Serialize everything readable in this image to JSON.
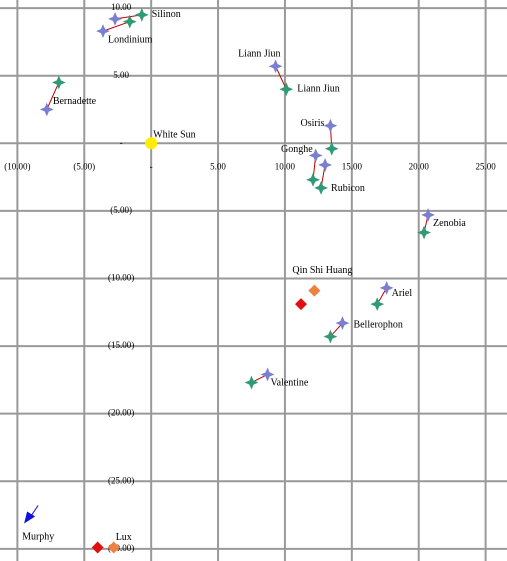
{
  "chart_data": {
    "type": "scatter",
    "xlim": [
      -11.3,
      26.6
    ],
    "ylim": [
      -30.9,
      10.6
    ],
    "grid": true,
    "xticks": [
      {
        "value": -10,
        "label": "(10.00)"
      },
      {
        "value": -5,
        "label": "(5.00)"
      },
      {
        "value": 0,
        "label": "-"
      },
      {
        "value": 5,
        "label": "5.00"
      },
      {
        "value": 10,
        "label": "10.00"
      },
      {
        "value": 15,
        "label": "15.00"
      },
      {
        "value": 20,
        "label": "20.00"
      },
      {
        "value": 25,
        "label": "25.00"
      }
    ],
    "yticks": [
      {
        "value": 10,
        "label": "10.00"
      },
      {
        "value": 5,
        "label": "5.00"
      },
      {
        "value": 0,
        "label": "-"
      },
      {
        "value": -5,
        "label": "(5.00)"
      },
      {
        "value": -10,
        "label": "(10.00)"
      },
      {
        "value": -15,
        "label": "(15.00)"
      },
      {
        "value": -20,
        "label": "(20.00)"
      },
      {
        "value": -25,
        "label": "(25.00)"
      },
      {
        "value": -30,
        "label": "(30.00)"
      }
    ],
    "series": [
      {
        "x": [
          -2.7,
          -0.7
        ],
        "values": [
          9.2,
          9.5
        ],
        "labels": [
          null,
          "Silinon"
        ],
        "marker": "star",
        "colors": [
          "#7b7fd0",
          "#2e9a76"
        ],
        "line_color": "#c00000"
      },
      {
        "x": [
          -3.6,
          -1.6
        ],
        "values": [
          8.3,
          9.0
        ],
        "labels": [
          "Londinium",
          null
        ],
        "marker": "star",
        "colors": [
          "#7b7fd0",
          "#2e9a76"
        ],
        "line_color": "#c00000"
      },
      {
        "x": [
          9.3,
          10.1
        ],
        "values": [
          5.7,
          4.0
        ],
        "labels": [
          "Liann Jiun",
          "Liann Jiun"
        ],
        "marker": "star",
        "colors": [
          "#7b7fd0",
          "#2e9a76"
        ],
        "line_color": "#c00000"
      },
      {
        "x": [
          -6.9,
          -7.8
        ],
        "values": [
          4.5,
          2.5
        ],
        "labels": [
          null,
          "Bernadette"
        ],
        "marker": "star",
        "colors": [
          "#2e9a76",
          "#7b7fd0"
        ],
        "line_color": "#c00000"
      },
      {
        "x": [
          0
        ],
        "values": [
          0
        ],
        "labels": [
          "White Sun"
        ],
        "marker": "circle",
        "colors": [
          "#ffee00"
        ]
      },
      {
        "x": [
          13.4,
          13.5
        ],
        "values": [
          1.3,
          -0.4
        ],
        "labels": [
          "Osiris",
          null
        ],
        "marker": "star",
        "colors": [
          "#7b7fd0",
          "#2e9a76"
        ],
        "line_color": "#c00000"
      },
      {
        "x": [
          12.3,
          12.1
        ],
        "values": [
          -0.9,
          -2.7
        ],
        "labels": [
          "Gonghe",
          null
        ],
        "marker": "star",
        "colors": [
          "#7b7fd0",
          "#2e9a76"
        ],
        "line_color": "#c00000"
      },
      {
        "x": [
          13.0,
          12.7
        ],
        "values": [
          -1.6,
          -3.3
        ],
        "labels": [
          null,
          "Rubicon"
        ],
        "marker": "star",
        "colors": [
          "#7b7fd0",
          "#2e9a76"
        ],
        "line_color": "#c00000"
      },
      {
        "x": [
          20.7,
          20.4
        ],
        "values": [
          -5.3,
          -6.6
        ],
        "labels": [
          null,
          "Zenobia"
        ],
        "marker": "star",
        "colors": [
          "#7b7fd0",
          "#2e9a76"
        ],
        "line_color": "#c00000"
      },
      {
        "x": [
          12.2,
          11.2
        ],
        "values": [
          -10.9,
          -11.9
        ],
        "labels": [
          "Qin Shi Huang",
          null
        ],
        "marker": "diamond",
        "colors": [
          "#f08040",
          "#e01010"
        ]
      },
      {
        "x": [
          17.6,
          16.9
        ],
        "values": [
          -10.7,
          -11.9
        ],
        "labels": [
          "Ariel",
          null
        ],
        "marker": "star",
        "colors": [
          "#7b7fd0",
          "#2e9a76"
        ],
        "line_color": "#c00000"
      },
      {
        "x": [
          14.3,
          13.4
        ],
        "values": [
          -13.3,
          -14.3
        ],
        "labels": [
          "Bellerophon",
          null
        ],
        "marker": "star",
        "colors": [
          "#7b7fd0",
          "#2e9a76"
        ],
        "line_color": "#c00000"
      },
      {
        "x": [
          8.7,
          7.5
        ],
        "values": [
          -17.1,
          -17.7
        ],
        "labels": [
          "Valentine",
          null
        ],
        "marker": "star",
        "colors": [
          "#7b7fd0",
          "#2e9a76"
        ],
        "line_color": "#c00000"
      },
      {
        "x": [
          -9.2
        ],
        "values": [
          -27.9
        ],
        "labels": [
          "Murphy"
        ],
        "marker": "arrow",
        "colors": [
          "#1010e0"
        ]
      },
      {
        "x": [
          -4.0,
          -2.8
        ],
        "values": [
          -29.9,
          -29.9
        ],
        "labels": [
          null,
          "Lux"
        ],
        "marker": "diamond",
        "colors": [
          "#e01010",
          "#f08040"
        ]
      }
    ]
  }
}
